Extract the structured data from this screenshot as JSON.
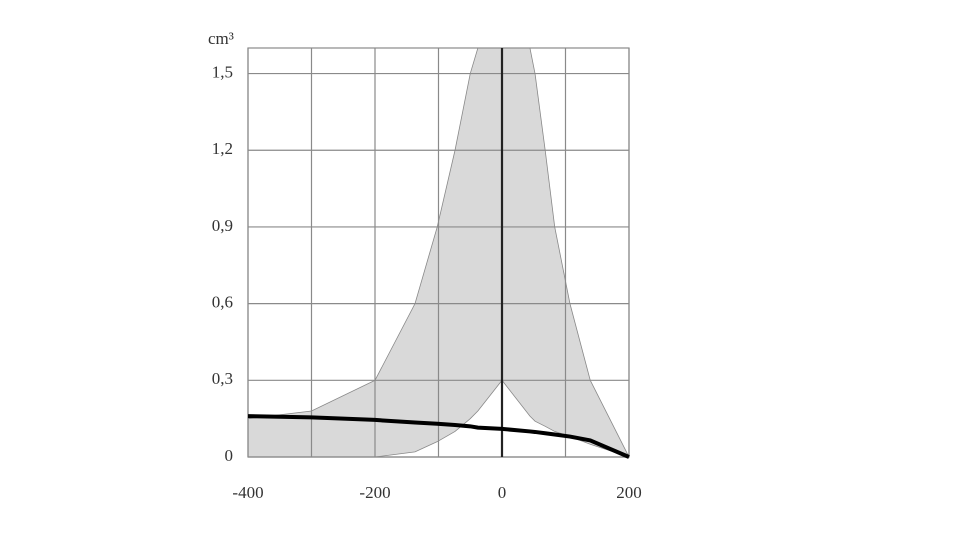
{
  "chart_data": {
    "type": "line",
    "y_label": "cm³",
    "x": [
      -400,
      -300,
      -200,
      -137,
      -102,
      -74,
      -50,
      -38,
      0,
      44,
      52,
      68,
      83,
      107,
      139,
      200
    ],
    "band": {
      "color": "#d9d9d9",
      "upper": [
        0.15,
        0.18,
        0.3,
        0.6,
        0.9,
        1.2,
        1.5,
        1.6,
        1.6,
        1.6,
        1.5,
        1.2,
        0.9,
        0.6,
        0.3,
        0
      ],
      "lower": [
        0,
        0,
        0,
        0.02,
        0.06,
        0.1,
        0.15,
        0.18,
        0.3,
        0.16,
        0.14,
        0.12,
        0.1,
        0.08,
        0.05,
        0
      ]
    },
    "series": [
      {
        "color": "#000000",
        "values": [
          0.16,
          0.155,
          0.145,
          0.135,
          0.13,
          0.125,
          0.12,
          0.115,
          0.11,
          0.1,
          0.098,
          0.093,
          0.088,
          0.08,
          0.065,
          0
        ]
      }
    ],
    "xlim": [
      -400,
      200
    ],
    "xticks": [
      -400,
      -200,
      0,
      200
    ],
    "xgrid": [
      -400,
      -300,
      -200,
      -100,
      0,
      100,
      200
    ],
    "ylim": [
      0,
      1.6
    ],
    "yticks": [
      0,
      {
        "value": 0.3,
        "label": "0,3"
      },
      {
        "value": 0.6,
        "label": "0,6"
      },
      {
        "value": 0.9,
        "label": "0,9"
      },
      {
        "value": 1.2,
        "label": "1,2"
      },
      {
        "value": 1.5,
        "label": "1,5"
      }
    ],
    "grid": true,
    "zero_line": true
  }
}
